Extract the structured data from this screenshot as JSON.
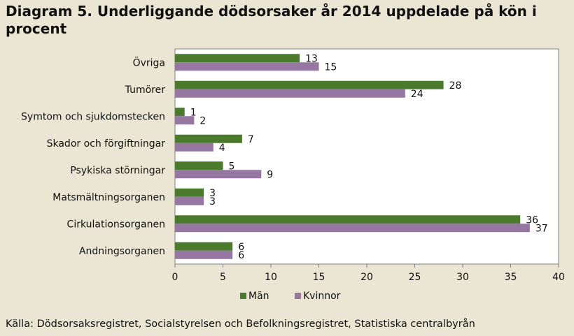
{
  "chart_data": {
    "type": "bar",
    "orientation": "horizontal",
    "title": "Diagram 5. Underliggande dödsorsaker år 2014 uppdelade på kön i procent",
    "categories": [
      "Övriga",
      "Tumörer",
      "Symtom och sjukdomstecken",
      "Skador och förgiftningar",
      "Psykiska störningar",
      "Matsmältningsorganen",
      "Cirkulationsorganen",
      "Andningsorganen"
    ],
    "series": [
      {
        "name": "Män",
        "color": "#4a7a2c",
        "values": [
          13,
          28,
          1,
          7,
          5,
          3,
          36,
          6
        ]
      },
      {
        "name": "Kvinnor",
        "color": "#9677a2",
        "values": [
          15,
          24,
          2,
          4,
          9,
          3,
          37,
          6
        ]
      }
    ],
    "xlim": [
      0,
      40
    ],
    "xticks": [
      "0",
      "5",
      "10",
      "15",
      "20",
      "25",
      "30",
      "35",
      "40"
    ],
    "xlabel": "",
    "ylabel": "",
    "legend": "bottom",
    "grid": false
  },
  "source": "Källa: Dödsorsaksregistret, Socialstyrelsen och Befolkningsregistret, Statistiska centralbyrån"
}
